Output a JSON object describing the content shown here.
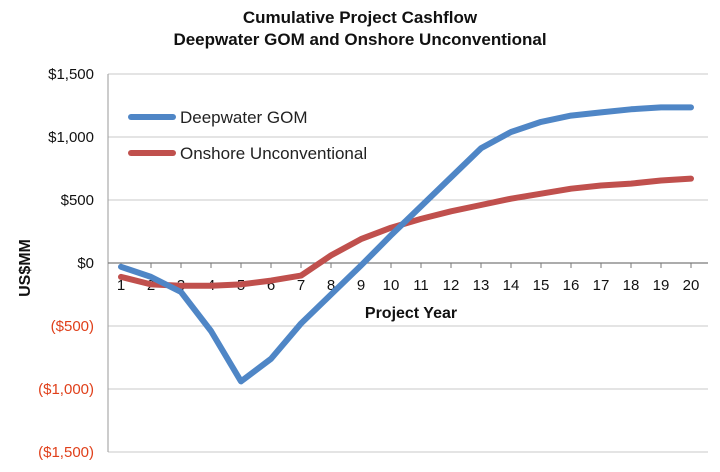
{
  "chart_data": {
    "type": "line",
    "title": "Cumulative Project Cashflow",
    "subtitle": "Deepwater GOM and Onshore Unconventional",
    "xlabel": "Project Year",
    "ylabel": "US$MM",
    "ylim": [
      -1500,
      1500
    ],
    "yticks": [
      {
        "value": 1500,
        "label": "$1,500"
      },
      {
        "value": 1000,
        "label": "$1,000"
      },
      {
        "value": 500,
        "label": "$500"
      },
      {
        "value": 0,
        "label": "$0"
      },
      {
        "value": -500,
        "label": "($500)"
      },
      {
        "value": -1000,
        "label": "($1,000)"
      },
      {
        "value": -1500,
        "label": "($1,500)"
      }
    ],
    "negative_tick_color": "#e0401b",
    "positive_tick_color": "#111111",
    "grid": "horizontal",
    "legend_position": "top-left",
    "x": [
      "1",
      "2",
      "3",
      "4",
      "5",
      "6",
      "7",
      "8",
      "9",
      "10",
      "11",
      "12",
      "13",
      "14",
      "15",
      "16",
      "17",
      "18",
      "19",
      "20"
    ],
    "series": [
      {
        "name": "Deepwater GOM",
        "color": "#4f86c6",
        "values": [
          -30,
          -110,
          -230,
          -540,
          -940,
          -760,
          -480,
          -250,
          -20,
          220,
          450,
          680,
          910,
          1040,
          1120,
          1170,
          1195,
          1220,
          1235,
          1235
        ]
      },
      {
        "name": "Onshore Unconventional",
        "color": "#c0504d",
        "values": [
          -110,
          -170,
          -180,
          -180,
          -170,
          -140,
          -100,
          60,
          190,
          280,
          350,
          410,
          460,
          510,
          550,
          590,
          615,
          630,
          655,
          670
        ]
      }
    ]
  }
}
